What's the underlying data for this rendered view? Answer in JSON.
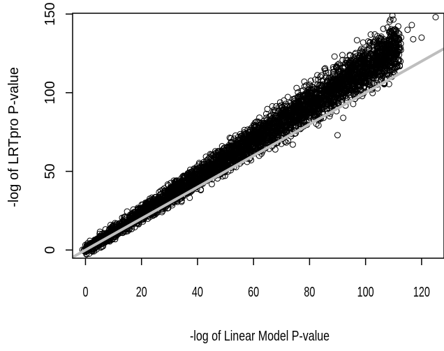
{
  "chart_data": {
    "type": "scatter",
    "xlabel": "-log of Linear Model P-value",
    "ylabel": "-log of LRTpro P-value",
    "xlim": [
      -4.6,
      128
    ],
    "ylim": [
      -5.2,
      150.5
    ],
    "x_ticks": [
      0,
      20,
      40,
      60,
      80,
      100,
      120
    ],
    "y_ticks": [
      0,
      50,
      100,
      150
    ],
    "x_tick_labels": [
      "0",
      "20",
      "40",
      "60",
      "80",
      "100",
      "120"
    ],
    "y_tick_labels": [
      "0",
      "50",
      "100",
      "150"
    ],
    "grid": false,
    "legend": "none",
    "point_color": "#000000",
    "reference_line": {
      "slope": 1,
      "intercept": 0,
      "color": "#bebebe"
    },
    "trend": {
      "slope": 1.16,
      "intercept": 0,
      "spread_min": 3,
      "spread_scale": 0.035,
      "x_range": [
        0,
        112
      ],
      "count": 4200
    },
    "outliers": [
      {
        "x": 125,
        "y": 148
      },
      {
        "x": 116.5,
        "y": 143
      },
      {
        "x": 120,
        "y": 135
      },
      {
        "x": 115,
        "y": 140
      },
      {
        "x": 117,
        "y": 134
      },
      {
        "x": 110,
        "y": 127
      },
      {
        "x": 90,
        "y": 73
      },
      {
        "x": 92,
        "y": 84
      },
      {
        "x": 104,
        "y": 106
      },
      {
        "x": 87,
        "y": 106
      }
    ]
  }
}
